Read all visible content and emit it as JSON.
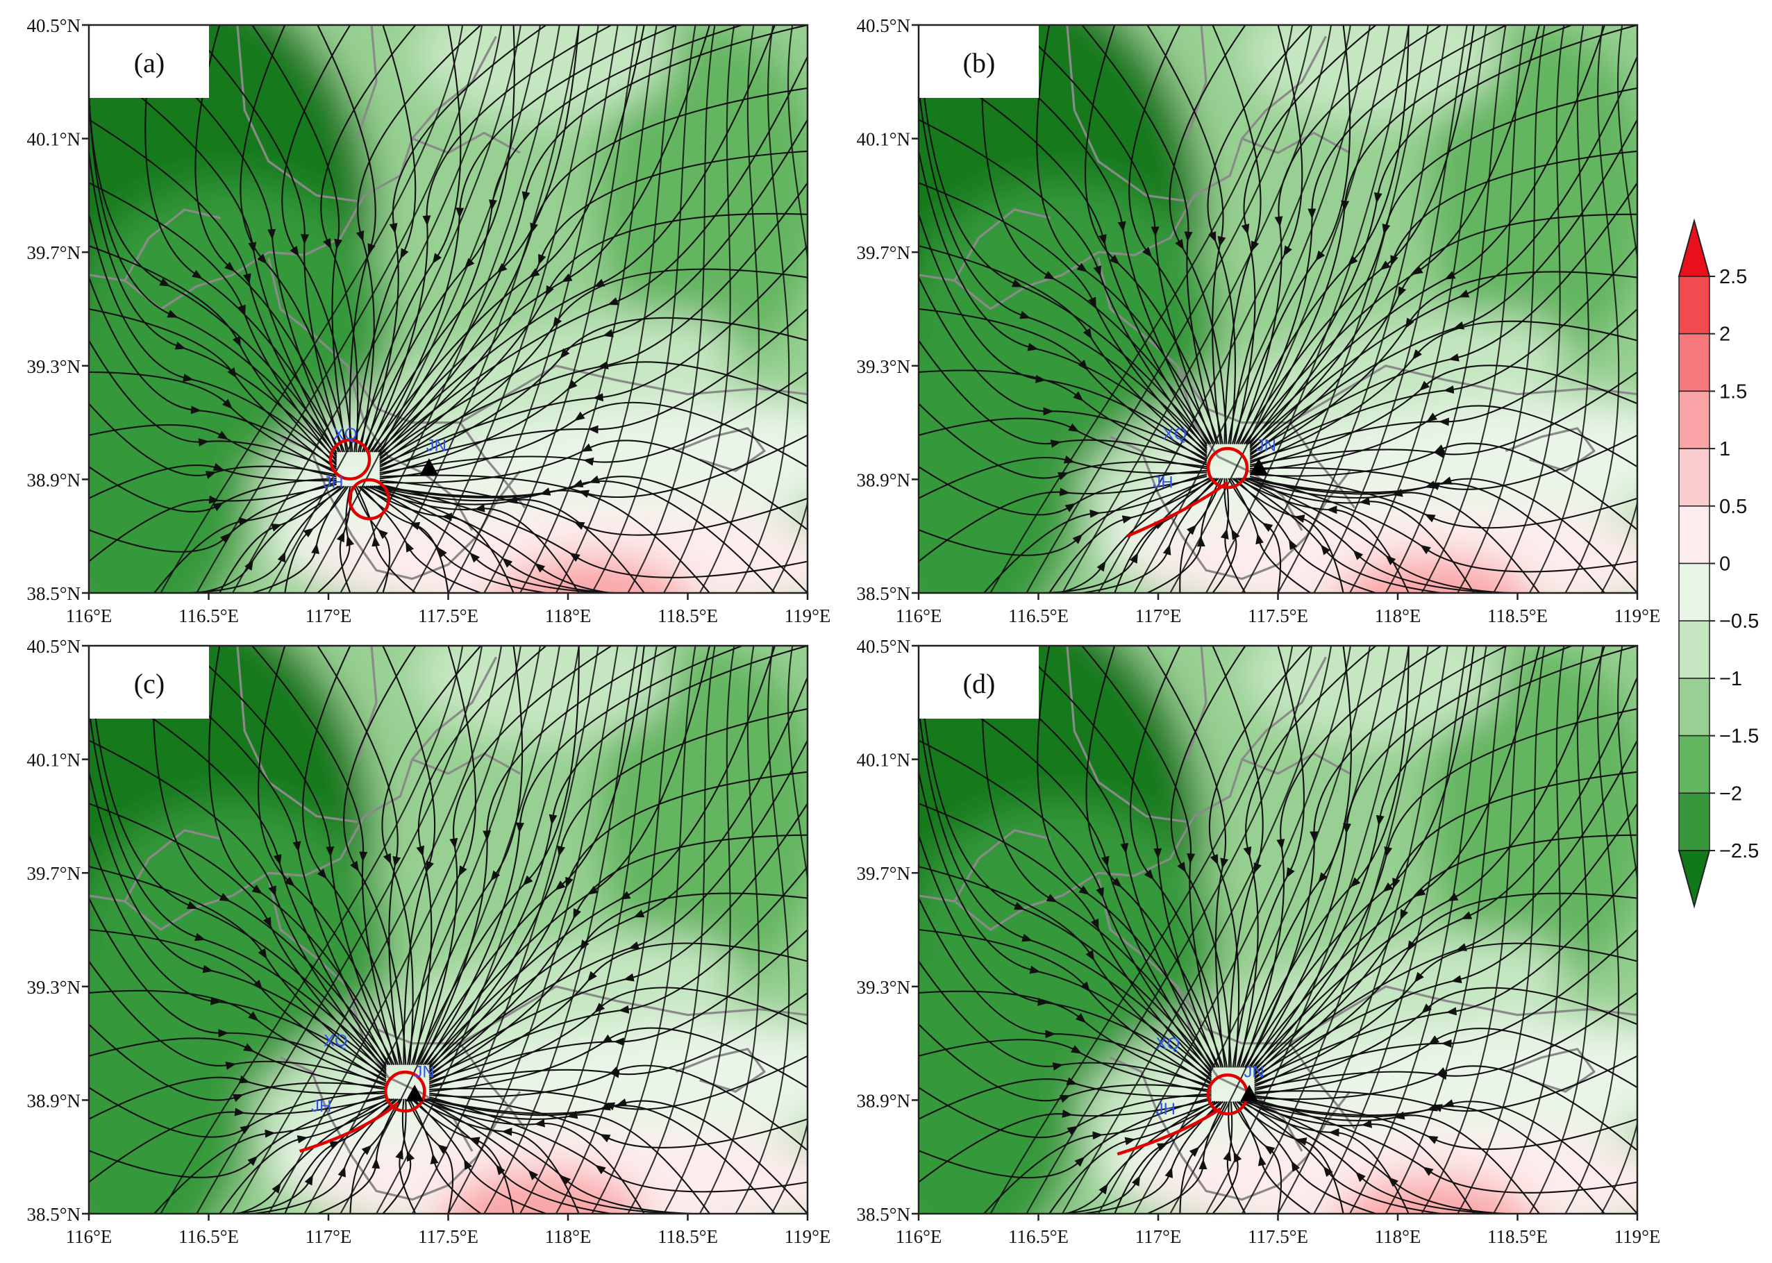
{
  "figure": {
    "panels": [
      {
        "label": "(a)",
        "stations": [
          {
            "name": "XQ",
            "lon": 117.07,
            "lat": 39.04
          },
          {
            "name": "JH",
            "lon": 117.02,
            "lat": 38.87
          },
          {
            "name": "JN",
            "lon": 117.45,
            "lat": 39.0
          }
        ],
        "triangle": {
          "lon": 117.42,
          "lat": 38.94
        },
        "circles": [
          {
            "lon": 117.09,
            "lat": 38.97
          },
          {
            "lon": 117.17,
            "lat": 38.83
          }
        ],
        "red_line": null,
        "center": {
          "lon": 117.1,
          "lat": 38.9
        },
        "warm_blob": {
          "lon": 118.1,
          "lat": 38.45
        }
      },
      {
        "label": "(b)",
        "stations": [
          {
            "name": "XQ",
            "lon": 117.07,
            "lat": 39.04
          },
          {
            "name": "JH",
            "lon": 117.02,
            "lat": 38.87
          },
          {
            "name": "JN",
            "lon": 117.45,
            "lat": 39.0
          }
        ],
        "triangle": {
          "lon": 117.42,
          "lat": 38.94
        },
        "circles": [
          {
            "lon": 117.29,
            "lat": 38.94
          }
        ],
        "red_line": [
          [
            117.29,
            38.89
          ],
          [
            117.15,
            38.8
          ],
          [
            116.87,
            38.7
          ]
        ],
        "center": {
          "lon": 117.28,
          "lat": 38.93
        },
        "warm_blob": {
          "lon": 118.15,
          "lat": 38.45
        }
      },
      {
        "label": "(c)",
        "stations": [
          {
            "name": "XQ",
            "lon": 117.03,
            "lat": 39.09
          },
          {
            "name": "JH",
            "lon": 116.97,
            "lat": 38.86
          },
          {
            "name": "JN",
            "lon": 117.4,
            "lat": 38.98
          }
        ],
        "triangle": {
          "lon": 117.36,
          "lat": 38.92
        },
        "circles": [
          {
            "lon": 117.32,
            "lat": 38.93
          }
        ],
        "red_line": [
          [
            117.29,
            38.89
          ],
          [
            117.15,
            38.79
          ],
          [
            116.88,
            38.72
          ]
        ],
        "center": {
          "lon": 117.32,
          "lat": 38.93
        },
        "warm_blob": {
          "lon": 117.9,
          "lat": 38.48
        }
      },
      {
        "label": "(d)",
        "stations": [
          {
            "name": "XQ",
            "lon": 117.04,
            "lat": 39.08
          },
          {
            "name": "JH",
            "lon": 117.03,
            "lat": 38.85
          },
          {
            "name": "JN",
            "lon": 117.4,
            "lat": 38.98
          }
        ],
        "triangle": {
          "lon": 117.38,
          "lat": 38.92
        },
        "circles": [
          {
            "lon": 117.29,
            "lat": 38.92
          }
        ],
        "red_line": [
          [
            117.26,
            38.87
          ],
          [
            117.1,
            38.78
          ],
          [
            116.83,
            38.71
          ]
        ],
        "center": {
          "lon": 117.3,
          "lat": 38.92
        },
        "warm_blob": {
          "lon": 118.15,
          "lat": 38.45
        }
      }
    ],
    "x_ticks": [
      "116°E",
      "116.5°E",
      "117°E",
      "117.5°E",
      "118°E",
      "118.5°E",
      "119°E"
    ],
    "y_ticks": [
      "40.5°N",
      "40.1°N",
      "39.7°N",
      "39.3°N",
      "38.9°N",
      "38.5°N"
    ],
    "lon_range": [
      116,
      119
    ],
    "lat_range": [
      38.5,
      40.5
    ],
    "colorbar": {
      "labels": [
        "2.5",
        "2",
        "1.5",
        "1",
        "0.5",
        "0",
        "−0.5",
        "−1",
        "−1.5",
        "−2",
        "−2.5"
      ],
      "colors": [
        "#e8101a",
        "#f14a4f",
        "#f6797c",
        "#f9a5a7",
        "#fccdce",
        "#fdecec",
        "#e9f5e7",
        "#c5e6c1",
        "#97d092",
        "#64b560",
        "#36983a",
        "#12791b"
      ]
    },
    "colors": {
      "streamline": "#111111",
      "boundary": "#8a8a8a",
      "circle": "#e00000",
      "station_text": "#2f54eb"
    }
  }
}
